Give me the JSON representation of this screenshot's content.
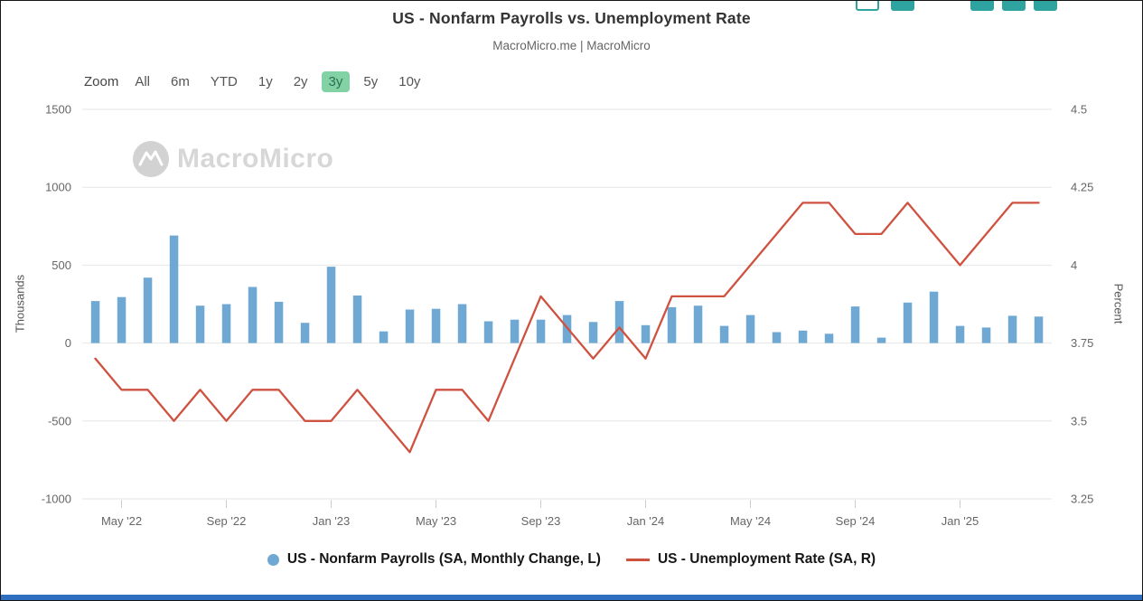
{
  "chart_data": {
    "type": "combo_bar_line",
    "title": "US - Nonfarm Payrolls vs. Unemployment Rate",
    "subtitle": "MacroMicro.me | MacroMicro",
    "categories": [
      "Apr '22",
      "May '22",
      "Jun '22",
      "Jul '22",
      "Aug '22",
      "Sep '22",
      "Oct '22",
      "Nov '22",
      "Dec '22",
      "Jan '23",
      "Feb '23",
      "Mar '23",
      "Apr '23",
      "May '23",
      "Jun '23",
      "Jul '23",
      "Aug '23",
      "Sep '23",
      "Oct '23",
      "Nov '23",
      "Dec '23",
      "Jan '24",
      "Feb '24",
      "Mar '24",
      "Apr '24",
      "May '24",
      "Jun '24",
      "Jul '24",
      "Aug '24",
      "Sep '24",
      "Oct '24",
      "Nov '24",
      "Dec '24",
      "Jan '25",
      "Feb '25",
      "Mar '25",
      "Apr '25"
    ],
    "x_tick_labels": [
      "May '22",
      "Sep '22",
      "Jan '23",
      "May '23",
      "Sep '23",
      "Jan '24",
      "May '24",
      "Sep '24",
      "Jan '25"
    ],
    "series": [
      {
        "name": "US - Nonfarm Payrolls (SA, Monthly Change, L)",
        "type": "bar",
        "axis": "left",
        "color": "#6fa9d3",
        "values": [
          270,
          295,
          420,
          690,
          240,
          250,
          360,
          265,
          130,
          490,
          305,
          75,
          215,
          220,
          250,
          140,
          150,
          150,
          180,
          135,
          270,
          115,
          230,
          240,
          110,
          180,
          70,
          80,
          60,
          235,
          35,
          260,
          330,
          110,
          100,
          175,
          170
        ]
      },
      {
        "name": "US - Unemployment Rate (SA, R)",
        "type": "line",
        "axis": "right",
        "color": "#cf5240",
        "values": [
          3.7,
          3.6,
          3.6,
          3.5,
          3.6,
          3.5,
          3.6,
          3.6,
          3.5,
          3.5,
          3.6,
          3.5,
          3.4,
          3.6,
          3.6,
          3.5,
          3.7,
          3.9,
          3.8,
          3.7,
          3.8,
          3.7,
          3.9,
          3.9,
          3.9,
          4.0,
          4.1,
          4.2,
          4.2,
          4.1,
          4.1,
          4.2,
          4.1,
          4.0,
          4.1,
          4.2,
          4.2
        ]
      }
    ],
    "left_axis": {
      "title": "Thousands",
      "min": -1000,
      "max": 1500,
      "ticks": [
        1500,
        1000,
        500,
        0,
        -500,
        -1000
      ]
    },
    "right_axis": {
      "title": "Percent",
      "min": 3.25,
      "max": 4.5,
      "ticks": [
        4.5,
        4.25,
        4,
        3.75,
        3.5,
        3.25
      ]
    },
    "grid": true,
    "legend_position": "bottom"
  },
  "toolbar": {
    "zoom_label": "Zoom",
    "options": [
      "All",
      "6m",
      "YTD",
      "1y",
      "2y",
      "3y",
      "5y",
      "10y"
    ],
    "active": "3y",
    "active_bg": "#82d2a5"
  },
  "watermark": {
    "text": "MacroMicro"
  },
  "mini_toolbar": {
    "color": "#2fa3a0",
    "buttons": [
      {
        "name": "chart-toolbar-button-1",
        "style": "outline"
      },
      {
        "name": "chart-toolbar-button-2",
        "style": "filled"
      },
      {
        "name": "chart-toolbar-button-3",
        "style": "filled"
      },
      {
        "name": "chart-toolbar-button-4",
        "style": "filled"
      },
      {
        "name": "chart-toolbar-button-5",
        "style": "filled"
      }
    ]
  },
  "bottom_bar_color": "#2e6fc0"
}
